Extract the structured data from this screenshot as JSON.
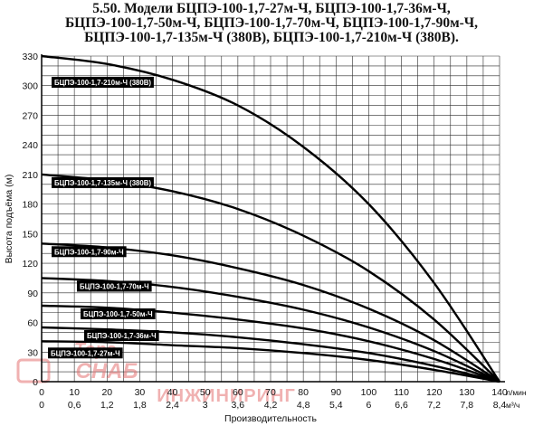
{
  "header": {
    "title_lines": [
      "5.50. Модели БЦПЭ-100-1,7-27м-Ч, БЦПЭ-100-1,7-36м-Ч,",
      "БЦПЭ-100-1,7-50м-Ч, БЦПЭ-100-1,7-70м-Ч, БЦПЭ-100-1,7-90м-Ч,",
      "БЦПЭ-100-1,7-135м-Ч (380В), БЦПЭ-100-1,7-210м-Ч (380В)."
    ]
  },
  "chart_data": {
    "type": "line",
    "xlabel": "Производительность",
    "x_unit_lmin": "л/мин",
    "x_unit_m3h": "м³/ч",
    "ylabel": "Высота подъёма (м)",
    "xlim": [
      0,
      140
    ],
    "ylim": [
      0,
      330
    ],
    "grid": true,
    "x_ticks_lmin": [
      "0",
      "10",
      "20",
      "30",
      "40",
      "50",
      "60",
      "70",
      "80",
      "90",
      "100",
      "110",
      "120",
      "130",
      "140"
    ],
    "x_ticks_m3h": [
      "0",
      "0,6",
      "1,2",
      "1,8",
      "2,4",
      "3",
      "3,6",
      "4,2",
      "4,8",
      "5,4",
      "6",
      "6,6",
      "7,2",
      "7,8",
      "8,4"
    ],
    "y_ticks": [
      "0",
      "30",
      "60",
      "90",
      "120",
      "150",
      "180",
      "210",
      "240",
      "270",
      "300",
      "330"
    ],
    "x": [
      0,
      20,
      40,
      60,
      80,
      100,
      120,
      140
    ],
    "series": [
      {
        "name": "БЦПЭ-100-1,7-210м-Ч (380В)",
        "values": [
          330,
          322,
          306,
          280,
          238,
          180,
          100,
          0
        ]
      },
      {
        "name": "БЦПЭ-100-1,7-135м-Ч (380В)",
        "values": [
          210,
          204,
          193,
          175,
          148,
          112,
          63,
          0
        ]
      },
      {
        "name": "БЦПЭ-100-1,7-90м-Ч",
        "values": [
          140,
          136,
          128,
          115,
          98,
          74,
          42,
          0
        ]
      },
      {
        "name": "БЦПЭ-100-1,7-70м-Ч",
        "values": [
          105,
          102,
          96,
          86,
          73,
          55,
          31,
          0
        ]
      },
      {
        "name": "БЦПЭ-100-1,7-50м-Ч",
        "values": [
          77,
          75,
          70,
          63,
          54,
          41,
          23,
          0
        ]
      },
      {
        "name": "БЦПЭ-100-1,7-36м-Ч",
        "values": [
          55,
          53,
          50,
          45,
          38,
          29,
          16,
          0
        ]
      },
      {
        "name": "БЦПЭ-100-1,7-27м-Ч",
        "values": [
          41,
          40,
          37,
          34,
          29,
          22,
          12,
          0
        ]
      }
    ]
  },
  "watermark": {
    "text_line1": "Торг",
    "text_line2": "СНАБ",
    "text_line3": "ИНЖИНИРИНГ"
  },
  "colors": {
    "curve": "#000000",
    "grid": "#2a2a2a",
    "watermark": "#e57373"
  }
}
